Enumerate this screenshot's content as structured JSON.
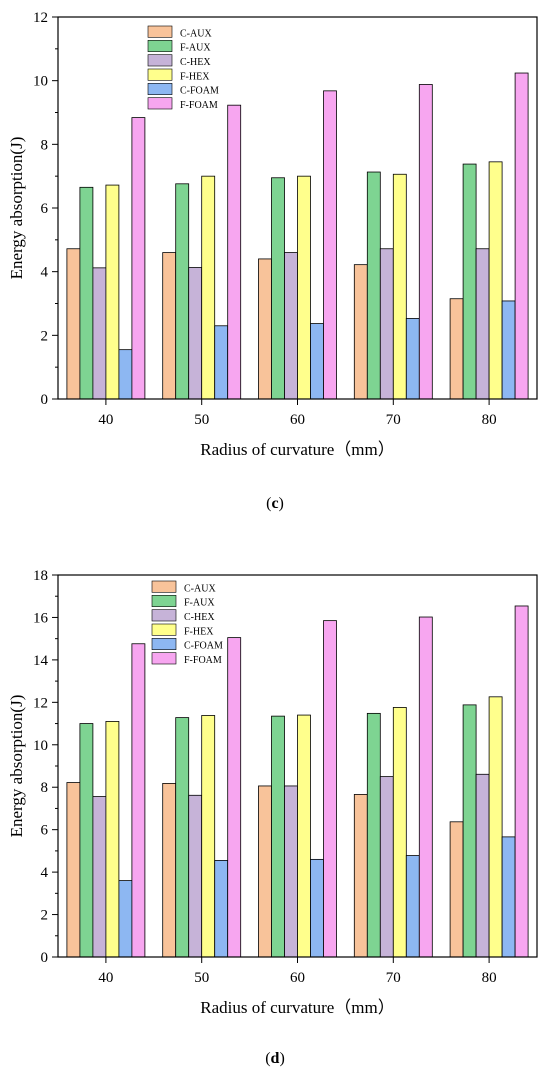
{
  "colors": {
    "C-AUX": "#f8c39a",
    "F-AUX": "#7ed492",
    "C-HEX": "#c6b3d8",
    "F-HEX": "#ffff8c",
    "C-FOAM": "#8db7f2",
    "F-FOAM": "#f7a6f0"
  },
  "chart_data": [
    {
      "type": "bar",
      "caption": {
        "open": "(",
        "letter": "c",
        "close": ")"
      },
      "xlabel": "Radius of curvature（mm）",
      "ylabel": "Energy absorption(J)",
      "categories": [
        "40",
        "50",
        "60",
        "70",
        "80"
      ],
      "ylim": [
        0,
        12
      ],
      "yticks": [
        0,
        2,
        4,
        6,
        8,
        10,
        12
      ],
      "legend_position": "top-left",
      "series": [
        {
          "name": "C-AUX",
          "values": [
            4.72,
            4.6,
            4.4,
            4.22,
            3.15
          ]
        },
        {
          "name": "F-AUX",
          "values": [
            6.65,
            6.76,
            6.95,
            7.13,
            7.38
          ]
        },
        {
          "name": "C-HEX",
          "values": [
            4.12,
            4.13,
            4.6,
            4.72,
            4.72
          ]
        },
        {
          "name": "F-HEX",
          "values": [
            6.72,
            7.0,
            7.0,
            7.06,
            7.45
          ]
        },
        {
          "name": "C-FOAM",
          "values": [
            1.55,
            2.3,
            2.37,
            2.53,
            3.08
          ]
        },
        {
          "name": "F-FOAM",
          "values": [
            8.84,
            9.23,
            9.68,
            9.88,
            10.24
          ]
        }
      ]
    },
    {
      "type": "bar",
      "caption": {
        "open": "(",
        "letter": "d",
        "close": ")"
      },
      "xlabel": "Radius of curvature（mm）",
      "ylabel": "Energy absorption(J)",
      "categories": [
        "40",
        "50",
        "60",
        "70",
        "80"
      ],
      "ylim": [
        0,
        18
      ],
      "yticks": [
        0,
        2,
        4,
        6,
        8,
        10,
        12,
        14,
        16,
        18
      ],
      "legend_position": "top-left",
      "series": [
        {
          "name": "C-AUX",
          "values": [
            8.22,
            8.18,
            8.06,
            7.66,
            6.37
          ]
        },
        {
          "name": "F-AUX",
          "values": [
            11.0,
            11.28,
            11.35,
            11.48,
            11.88
          ]
        },
        {
          "name": "C-HEX",
          "values": [
            7.56,
            7.62,
            8.06,
            8.5,
            8.61
          ]
        },
        {
          "name": "F-HEX",
          "values": [
            11.1,
            11.38,
            11.4,
            11.76,
            12.26
          ]
        },
        {
          "name": "C-FOAM",
          "values": [
            3.6,
            4.55,
            4.6,
            4.78,
            5.66
          ]
        },
        {
          "name": "F-FOAM",
          "values": [
            14.76,
            15.05,
            15.85,
            16.02,
            16.54
          ]
        }
      ]
    }
  ]
}
